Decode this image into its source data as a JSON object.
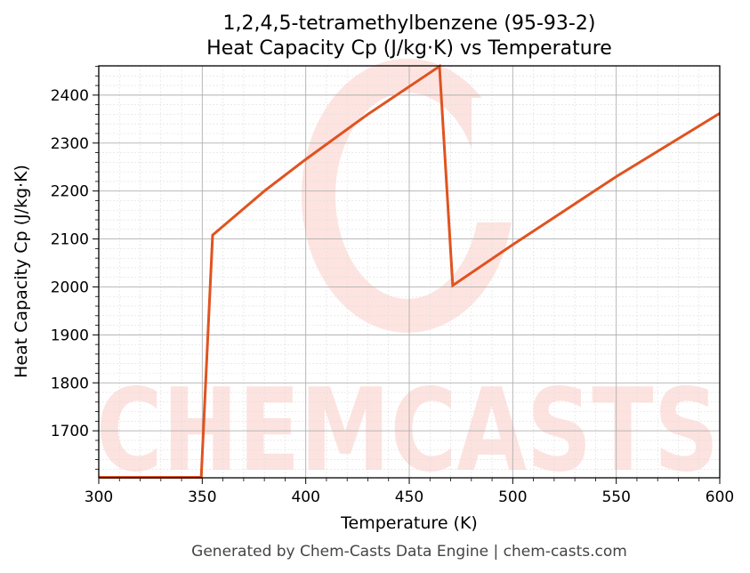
{
  "chart_data": {
    "type": "line",
    "title_line1": "1,2,4,5-tetramethylbenzene (95-93-2)",
    "title_line2": "Heat Capacity Cp (J/kg·K) vs Temperature",
    "xlabel": "Temperature (K)",
    "ylabel": "Heat Capacity Cp (J/kg·K)",
    "xlim": [
      300,
      600
    ],
    "ylim": [
      1602,
      2461
    ],
    "xticks": [
      300,
      350,
      400,
      450,
      500,
      550,
      600
    ],
    "yticks": [
      1700,
      1800,
      1900,
      2000,
      2100,
      2200,
      2300,
      2400
    ],
    "grid": true,
    "series": [
      {
        "name": "Cp",
        "color": "#e0531f",
        "x": [
          300,
          349.5,
          355,
          380,
          400,
          430,
          464.6,
          471,
          500,
          550,
          600
        ],
        "y": [
          1603,
          1603,
          2108,
          2200,
          2266,
          2360,
          2460,
          2003,
          2088,
          2230,
          2362
        ]
      }
    ],
    "watermark": "CHEMCASTS",
    "footer": "Generated by Chem-Casts Data Engine | chem-casts.com"
  }
}
